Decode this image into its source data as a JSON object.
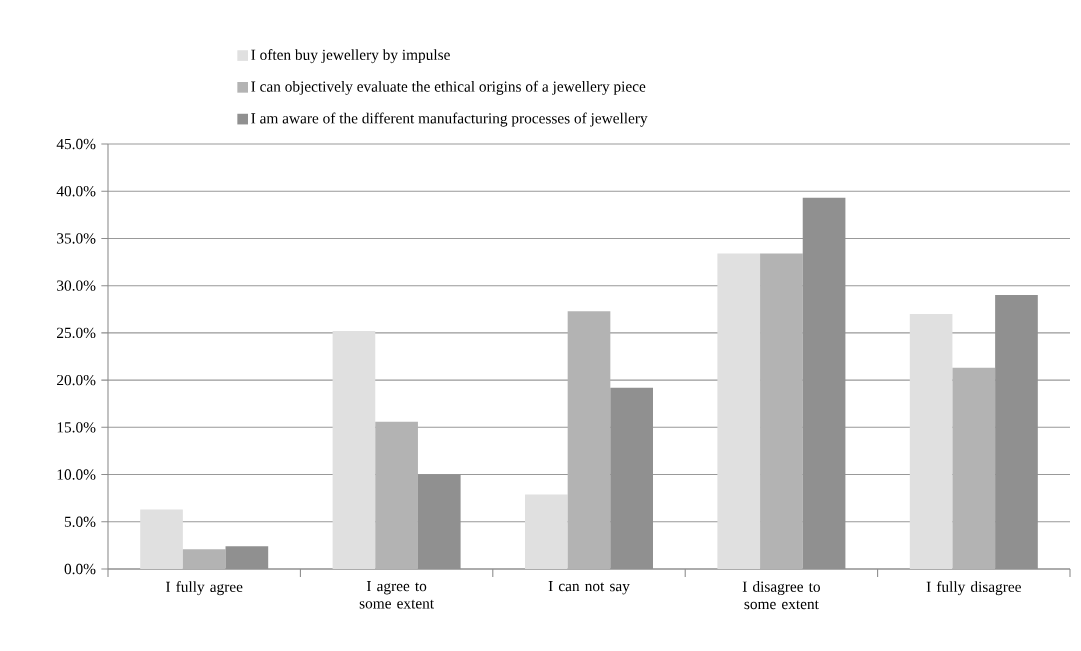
{
  "chart_data": {
    "type": "bar",
    "categories": [
      "I fully agree",
      "I agree to some extent",
      "I can not say",
      "I disagree to some extent",
      "I fully disagree"
    ],
    "series": [
      {
        "name": "I often buy jewellery by impulse",
        "color": "#e0e0e0",
        "values": [
          6.3,
          25.2,
          7.9,
          33.4,
          27.0
        ]
      },
      {
        "name": "I can objectively evaluate the ethical origins of a jewellery piece",
        "color": "#b3b3b3",
        "values": [
          2.1,
          15.6,
          27.3,
          33.4,
          21.3
        ]
      },
      {
        "name": "I am aware of the different manufacturing processes of jewellery",
        "color": "#909090",
        "values": [
          2.4,
          10.0,
          19.2,
          39.3,
          29.0
        ]
      }
    ],
    "ylim": [
      0,
      45
    ],
    "yticks": [
      {
        "value": 0,
        "label": "0.0%"
      },
      {
        "value": 5,
        "label": "5.0%"
      },
      {
        "value": 10,
        "label": "10.0%"
      },
      {
        "value": 15,
        "label": "15.0%"
      },
      {
        "value": 20,
        "label": "20.0%"
      },
      {
        "value": 25,
        "label": "25.0%"
      },
      {
        "value": 30,
        "label": "30.0%"
      },
      {
        "value": 35,
        "label": "35.0%"
      },
      {
        "value": 40,
        "label": "40.0%"
      },
      {
        "value": 45,
        "label": "45.0%"
      }
    ],
    "grid": "y",
    "legend": "top"
  }
}
